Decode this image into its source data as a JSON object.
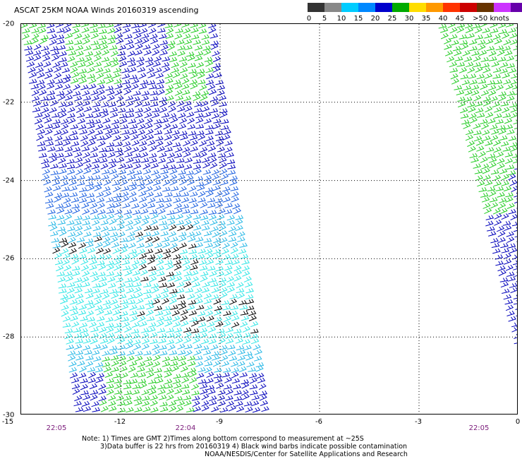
{
  "title": "ASCAT 25KM NOAA Winds 20160319 ascending",
  "legend": {
    "unit_label": ">50 knots",
    "labels": [
      "0",
      "5",
      "10",
      "15",
      "20",
      "25",
      "30",
      "35",
      "40",
      "45",
      ">50 knots"
    ],
    "colors": [
      "#333333",
      "#888888",
      "#00ccff",
      "#0088ff",
      "#0000cc",
      "#00aa00",
      "#ffdd00",
      "#ff9900",
      "#ff3300",
      "#cc0000",
      "#663300",
      "#cc33ff",
      "#6600aa",
      "#440088"
    ]
  },
  "axes": {
    "lat_ticks": [
      "-20",
      "-22",
      "-24",
      "-26",
      "-28",
      "-30"
    ],
    "lon_ticks": [
      "-15",
      "-12",
      "-9",
      "-6",
      "-3",
      "0"
    ],
    "lat_range": [
      -30,
      -20
    ],
    "lon_range": [
      -15,
      0
    ]
  },
  "swath_times": [
    "22:05",
    "22:04",
    "22:05"
  ],
  "notes": {
    "line1": "Note: 1) Times are GMT 2)Times along bottom correspond to measurement at ~25S",
    "line2": "3)Data buffer is 22 hrs from 20160319 4) Black wind barbs indicate possible contamination",
    "line3": "NOAA/NESDIS/Center for Satellite Applications and Research"
  },
  "colors": {
    "grid": "#000000",
    "dark_blue": "#0000bb",
    "blue": "#1a5fe0",
    "light_blue": "#25b7e6",
    "cyan": "#2fe6e6",
    "green": "#22cc22",
    "black": "#000000"
  }
}
